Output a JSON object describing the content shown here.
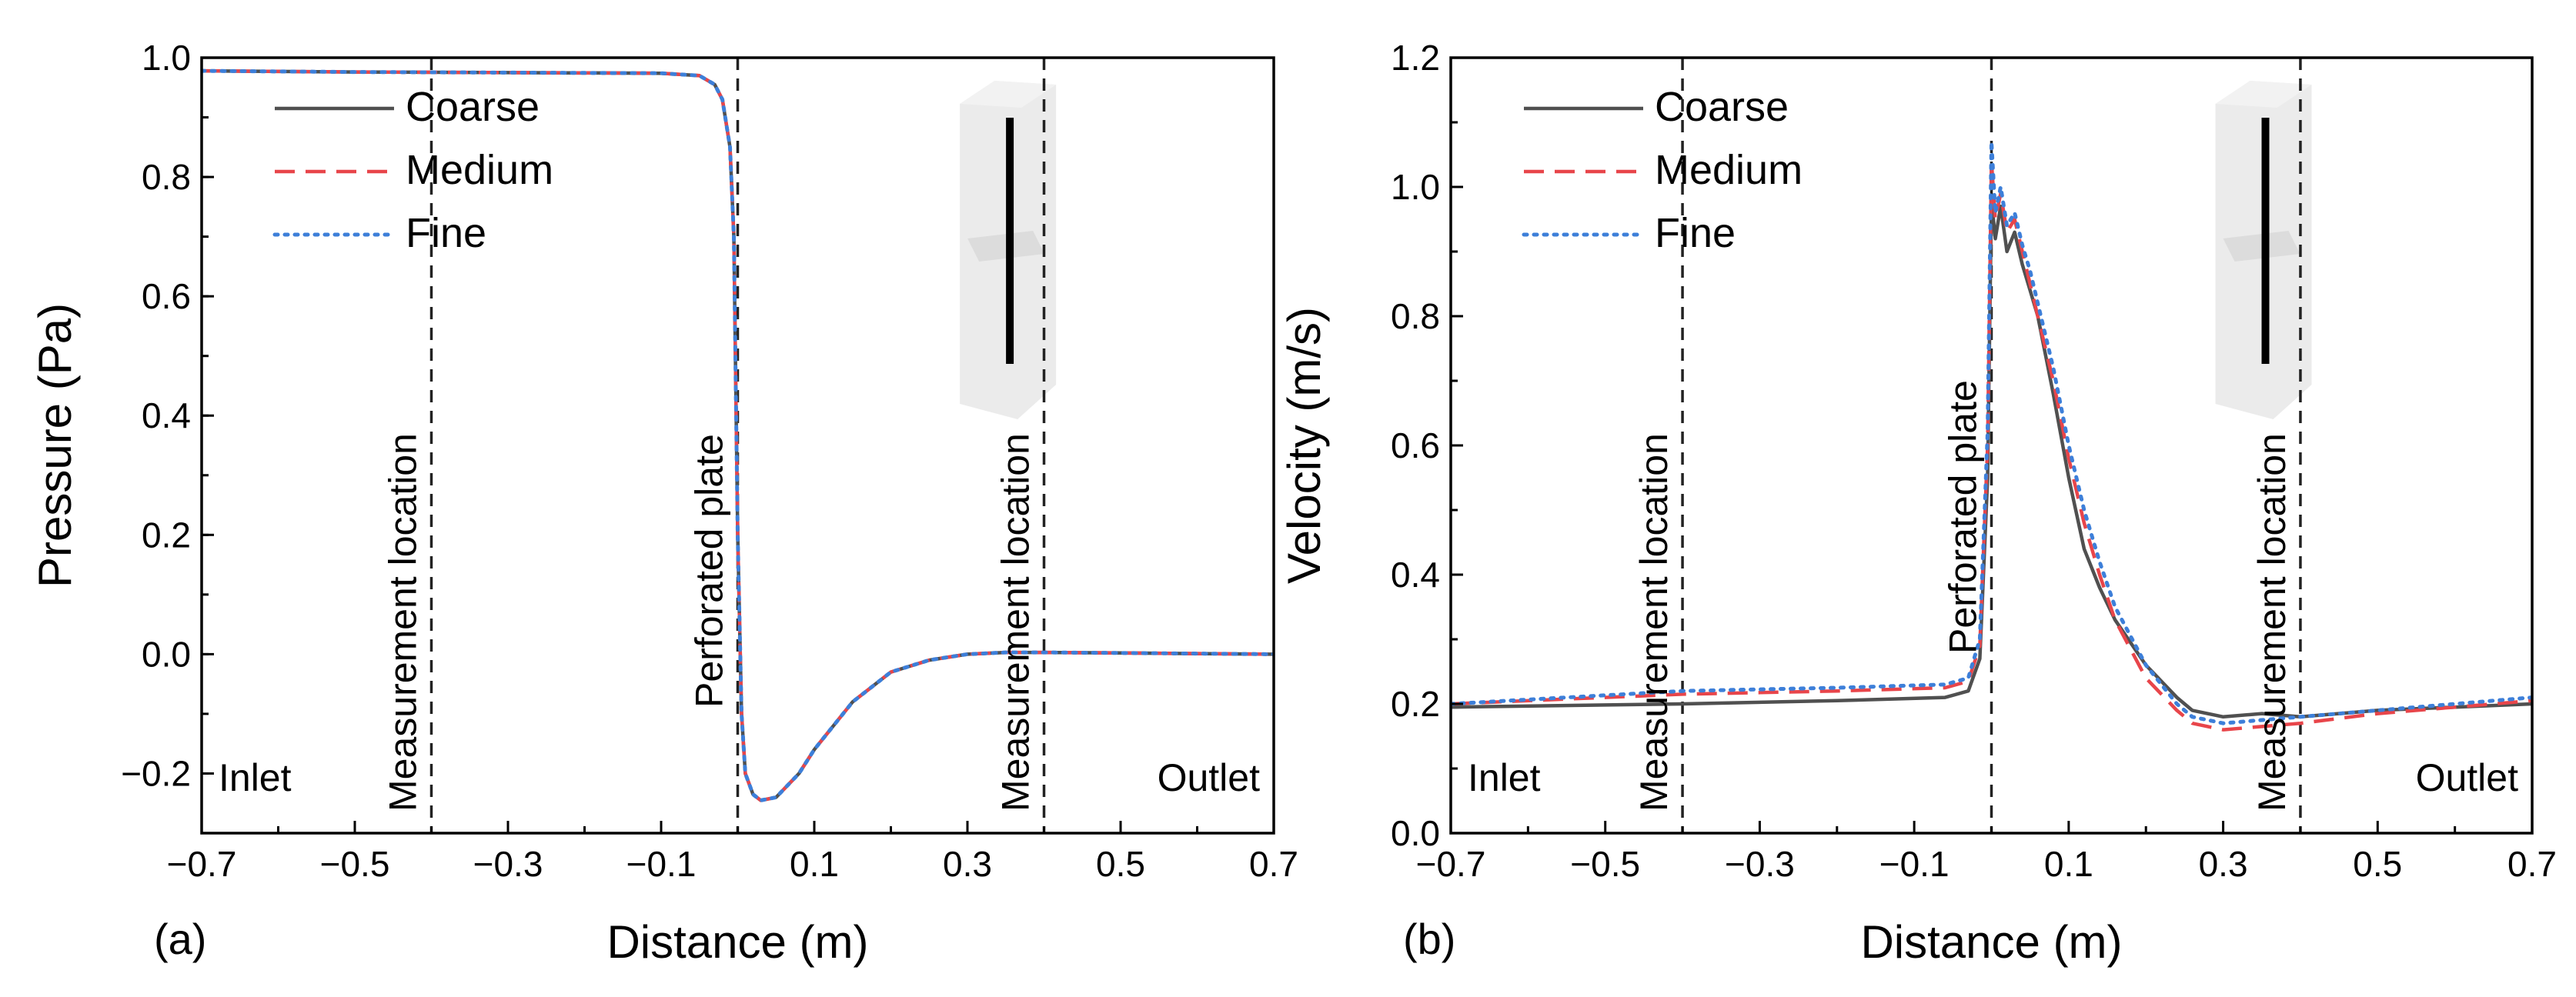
{
  "chart_data": [
    {
      "type": "line",
      "panel_label": "(a)",
      "xlabel": "Distance (m)",
      "ylabel": "Pressure (Pa)",
      "xlim": [
        -0.7,
        0.7
      ],
      "ylim": [
        -0.3,
        1.0
      ],
      "xticks": [
        "−0.7",
        "−0.5",
        "−0.3",
        "−0.1",
        "0.1",
        "0.3",
        "0.5",
        "0.7"
      ],
      "yticks": [
        "−0.2",
        "0.0",
        "0.2",
        "0.4",
        "0.6",
        "0.8",
        "1.0"
      ],
      "legend": [
        "Coarse",
        "Medium",
        "Fine"
      ],
      "annotations": {
        "inlet": "Inlet",
        "outlet": "Outlet",
        "measurement_left": "Measurement location",
        "plate": "Perforated plate",
        "measurement_right": "Measurement location"
      },
      "vlines": [
        -0.4,
        0.0,
        0.4
      ],
      "series": [
        {
          "name": "Coarse",
          "color": "#505050",
          "dash": "solid",
          "x": [
            -0.7,
            -0.5,
            -0.3,
            -0.1,
            -0.05,
            -0.03,
            -0.02,
            -0.01,
            -0.005,
            0.0,
            0.005,
            0.01,
            0.02,
            0.03,
            0.05,
            0.08,
            0.1,
            0.15,
            0.2,
            0.25,
            0.3,
            0.35,
            0.4,
            0.5,
            0.6,
            0.7
          ],
          "y": [
            0.978,
            0.976,
            0.975,
            0.974,
            0.97,
            0.955,
            0.93,
            0.85,
            0.7,
            0.2,
            -0.1,
            -0.2,
            -0.235,
            -0.245,
            -0.24,
            -0.2,
            -0.16,
            -0.08,
            -0.03,
            -0.01,
            0.0,
            0.003,
            0.003,
            0.002,
            0.001,
            0.0
          ]
        },
        {
          "name": "Medium",
          "color": "#e8454a",
          "dash": "long",
          "x": [
            -0.7,
            -0.5,
            -0.3,
            -0.1,
            -0.05,
            -0.03,
            -0.02,
            -0.01,
            -0.005,
            0.0,
            0.005,
            0.01,
            0.02,
            0.03,
            0.05,
            0.08,
            0.1,
            0.15,
            0.2,
            0.25,
            0.3,
            0.35,
            0.4,
            0.5,
            0.6,
            0.7
          ],
          "y": [
            0.978,
            0.976,
            0.975,
            0.974,
            0.97,
            0.955,
            0.93,
            0.85,
            0.7,
            0.2,
            -0.1,
            -0.2,
            -0.235,
            -0.245,
            -0.24,
            -0.2,
            -0.16,
            -0.08,
            -0.03,
            -0.01,
            0.0,
            0.003,
            0.003,
            0.002,
            0.001,
            0.0
          ]
        },
        {
          "name": "Fine",
          "color": "#3d7fd9",
          "dash": "dot",
          "x": [
            -0.7,
            -0.5,
            -0.3,
            -0.1,
            -0.05,
            -0.03,
            -0.02,
            -0.01,
            -0.005,
            0.0,
            0.005,
            0.01,
            0.02,
            0.03,
            0.05,
            0.08,
            0.1,
            0.15,
            0.2,
            0.25,
            0.3,
            0.35,
            0.4,
            0.5,
            0.6,
            0.7
          ],
          "y": [
            0.978,
            0.976,
            0.975,
            0.974,
            0.97,
            0.955,
            0.93,
            0.85,
            0.7,
            0.2,
            -0.1,
            -0.2,
            -0.235,
            -0.245,
            -0.24,
            -0.2,
            -0.16,
            -0.08,
            -0.03,
            -0.01,
            0.0,
            0.003,
            0.003,
            0.002,
            0.001,
            0.0
          ]
        }
      ]
    },
    {
      "type": "line",
      "panel_label": "(b)",
      "xlabel": "Distance (m)",
      "ylabel": "Velocity (m/s)",
      "xlim": [
        -0.7,
        0.7
      ],
      "ylim": [
        0.0,
        1.2
      ],
      "xticks": [
        "−0.7",
        "−0.5",
        "−0.3",
        "−0.1",
        "0.1",
        "0.3",
        "0.5",
        "0.7"
      ],
      "yticks": [
        "0.0",
        "0.2",
        "0.4",
        "0.6",
        "0.8",
        "1.0",
        "1.2"
      ],
      "legend": [
        "Coarse",
        "Medium",
        "Fine"
      ],
      "annotations": {
        "inlet": "Inlet",
        "outlet": "Outlet",
        "measurement_left": "Measurement location",
        "plate": "Perforated plate",
        "measurement_right": "Measurement location"
      },
      "vlines": [
        -0.4,
        0.0,
        0.4
      ],
      "series": [
        {
          "name": "Coarse",
          "color": "#505050",
          "dash": "solid",
          "x": [
            -0.7,
            -0.4,
            -0.2,
            -0.06,
            -0.03,
            -0.015,
            -0.005,
            0.0,
            0.005,
            0.012,
            0.02,
            0.03,
            0.04,
            0.05,
            0.06,
            0.08,
            0.1,
            0.12,
            0.14,
            0.16,
            0.2,
            0.24,
            0.26,
            0.3,
            0.35,
            0.4,
            0.5,
            0.6,
            0.7
          ],
          "y": [
            0.195,
            0.2,
            0.205,
            0.21,
            0.22,
            0.27,
            0.55,
            0.98,
            0.92,
            0.97,
            0.9,
            0.93,
            0.88,
            0.84,
            0.8,
            0.68,
            0.55,
            0.44,
            0.38,
            0.33,
            0.26,
            0.21,
            0.19,
            0.18,
            0.185,
            0.18,
            0.19,
            0.195,
            0.2
          ]
        },
        {
          "name": "Medium",
          "color": "#e8454a",
          "dash": "long",
          "x": [
            -0.7,
            -0.4,
            -0.2,
            -0.06,
            -0.03,
            -0.015,
            -0.005,
            0.0,
            0.005,
            0.012,
            0.02,
            0.03,
            0.04,
            0.05,
            0.06,
            0.08,
            0.1,
            0.12,
            0.14,
            0.16,
            0.2,
            0.24,
            0.26,
            0.3,
            0.35,
            0.4,
            0.5,
            0.6,
            0.7
          ],
          "y": [
            0.2,
            0.215,
            0.22,
            0.225,
            0.235,
            0.29,
            0.6,
            1.04,
            0.95,
            0.99,
            0.93,
            0.95,
            0.9,
            0.85,
            0.8,
            0.7,
            0.58,
            0.48,
            0.4,
            0.33,
            0.24,
            0.19,
            0.17,
            0.16,
            0.165,
            0.17,
            0.185,
            0.195,
            0.205
          ]
        },
        {
          "name": "Fine",
          "color": "#3d7fd9",
          "dash": "dot",
          "x": [
            -0.7,
            -0.4,
            -0.2,
            -0.06,
            -0.03,
            -0.015,
            -0.005,
            0.0,
            0.005,
            0.012,
            0.02,
            0.03,
            0.04,
            0.05,
            0.06,
            0.08,
            0.1,
            0.12,
            0.14,
            0.16,
            0.2,
            0.24,
            0.26,
            0.3,
            0.35,
            0.4,
            0.5,
            0.6,
            0.7
          ],
          "y": [
            0.2,
            0.22,
            0.225,
            0.23,
            0.24,
            0.3,
            0.62,
            1.07,
            0.96,
            1.0,
            0.94,
            0.96,
            0.91,
            0.87,
            0.82,
            0.72,
            0.6,
            0.5,
            0.42,
            0.35,
            0.26,
            0.2,
            0.18,
            0.17,
            0.175,
            0.18,
            0.19,
            0.2,
            0.21
          ]
        }
      ]
    }
  ]
}
